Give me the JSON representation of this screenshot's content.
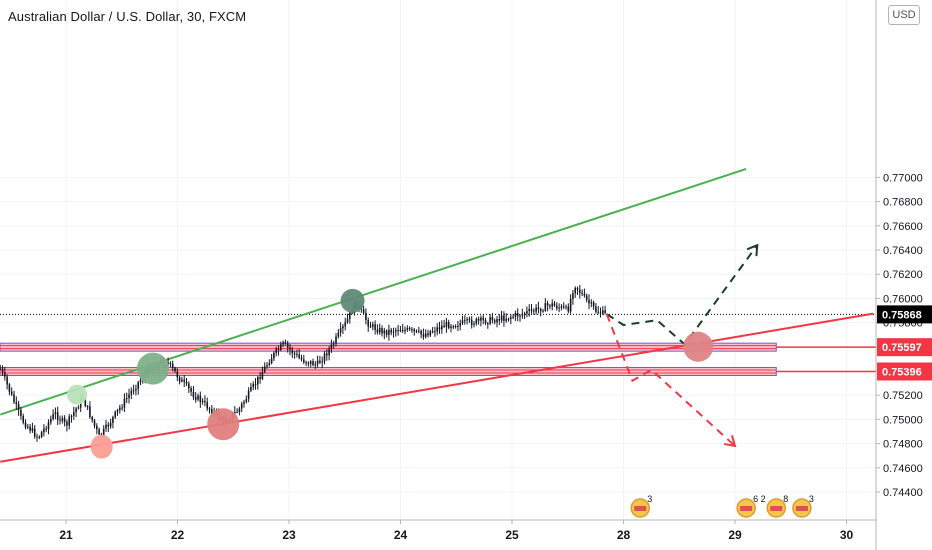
{
  "title": "Australian Dollar / U.S. Dollar, 30, FXCM",
  "currency": "USD",
  "colors": {
    "bg": "#ffffff",
    "candle": "#131722",
    "green_line": "#4caf50",
    "red_line": "#f23645",
    "zone_fill": "#f3c3cf",
    "zone_border": "#7e57c2",
    "current_price": "#000000",
    "level_label": "#f23645"
  },
  "chart_data": {
    "type": "candlestick",
    "y_ticks": [
      "0.77000",
      "0.76800",
      "0.76600",
      "0.76400",
      "0.76200",
      "0.76000",
      "0.75800",
      "0.75600",
      "0.75400",
      "0.75200",
      "0.75000",
      "0.74800",
      "0.74600",
      "0.74400"
    ],
    "ylim": [
      0.7426,
      0.77
    ],
    "x_ticks": [
      "21",
      "22",
      "23",
      "24",
      "25",
      "28",
      "29",
      "30"
    ],
    "x_ticks_at": [
      21,
      22,
      23,
      24,
      25,
      26,
      27,
      28
    ],
    "xlim": [
      20.41,
      28.24
    ],
    "current_price": {
      "label": "0.75868",
      "value": 0.75868
    },
    "levels": [
      {
        "label": "0.75597",
        "value": 0.75597
      },
      {
        "label": "0.75396",
        "value": 0.75396
      }
    ],
    "zones": [
      {
        "value": 0.75597,
        "x_end": 27.37
      },
      {
        "value": 0.75396,
        "x_end": 27.37
      }
    ],
    "trendlines": [
      {
        "color": "green",
        "p1": [
          20.41,
          0.7504
        ],
        "p2": [
          27.1,
          0.7707
        ]
      },
      {
        "color": "red",
        "p1": [
          20.41,
          0.7465
        ],
        "p2": [
          28.24,
          0.75874
        ]
      }
    ],
    "price_path": [
      [
        20.41,
        0.7542
      ],
      [
        20.6,
        0.75
      ],
      [
        20.75,
        0.7485
      ],
      [
        20.9,
        0.7505
      ],
      [
        21.0,
        0.7495
      ],
      [
        21.15,
        0.7518
      ],
      [
        21.3,
        0.7485
      ],
      [
        21.45,
        0.7505
      ],
      [
        21.6,
        0.7525
      ],
      [
        21.75,
        0.7542
      ],
      [
        21.9,
        0.7548
      ],
      [
        22.05,
        0.753
      ],
      [
        22.15,
        0.752
      ],
      [
        22.3,
        0.7508
      ],
      [
        22.42,
        0.7498
      ],
      [
        22.55,
        0.7508
      ],
      [
        22.7,
        0.753
      ],
      [
        22.83,
        0.755
      ],
      [
        22.95,
        0.7562
      ],
      [
        23.1,
        0.755
      ],
      [
        23.25,
        0.7545
      ],
      [
        23.38,
        0.756
      ],
      [
        23.5,
        0.7578
      ],
      [
        23.6,
        0.7596
      ],
      [
        23.72,
        0.7578
      ],
      [
        23.85,
        0.7572
      ],
      [
        24.0,
        0.7575
      ],
      [
        24.2,
        0.757
      ],
      [
        24.4,
        0.7578
      ],
      [
        24.6,
        0.758
      ],
      [
        24.8,
        0.7582
      ],
      [
        25.0,
        0.7585
      ],
      [
        25.2,
        0.759
      ],
      [
        25.35,
        0.7595
      ],
      [
        25.5,
        0.759
      ],
      [
        25.56,
        0.7612
      ],
      [
        25.65,
        0.76
      ],
      [
        25.75,
        0.759
      ],
      [
        25.85,
        0.7586
      ]
    ],
    "projections": [
      {
        "color": "green",
        "points": [
          [
            25.85,
            0.7587
          ],
          [
            26.0,
            0.7578
          ],
          [
            26.3,
            0.7582
          ],
          [
            26.55,
            0.7562
          ],
          [
            26.85,
            0.76
          ],
          [
            27.2,
            0.7644
          ]
        ],
        "arrow": true
      },
      {
        "color": "red",
        "points": [
          [
            25.85,
            0.7587
          ],
          [
            26.08,
            0.7532
          ],
          [
            26.25,
            0.7541
          ],
          [
            27.0,
            0.7478
          ]
        ],
        "arrow": true
      }
    ],
    "markers": [
      {
        "color": "#b8e2b9",
        "x": 21.1,
        "y": 0.75205
      },
      {
        "color": "#fa9e96",
        "x": 21.32,
        "y": 0.74775
      },
      {
        "color": "#7fb08a",
        "x": 21.78,
        "y": 0.7542
      },
      {
        "color": "#df7f7d",
        "x": 22.41,
        "y": 0.7496
      },
      {
        "color": "#5f8a78",
        "x": 23.57,
        "y": 0.7598
      },
      {
        "color": "#dd8585",
        "x": 26.67,
        "y": 0.756
      }
    ],
    "events": [
      {
        "x": 26.15,
        "label": "3"
      },
      {
        "x": 27.1,
        "label": "6 2"
      },
      {
        "x": 27.37,
        "label": "8"
      },
      {
        "x": 27.6,
        "label": "3"
      }
    ]
  }
}
